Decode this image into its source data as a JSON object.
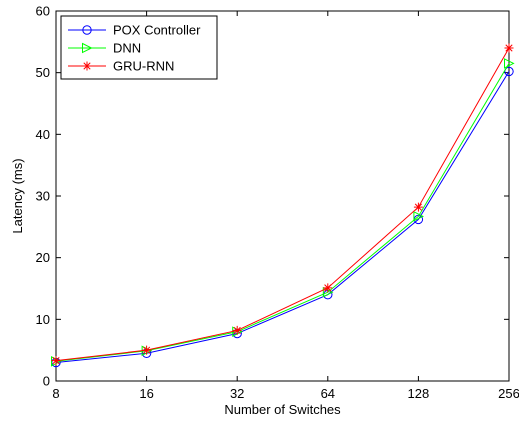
{
  "chart_data": {
    "type": "line",
    "title": "",
    "xlabel": "Number of Switches",
    "ylabel": "Latency (ms)",
    "categories": [
      "8",
      "16",
      "32",
      "64",
      "128",
      "256"
    ],
    "x_scale": "log2",
    "ylim": [
      0,
      60
    ],
    "yticks": [
      "0",
      "10",
      "20",
      "30",
      "40",
      "50",
      "60"
    ],
    "grid": false,
    "legend_position": "top-left",
    "series": [
      {
        "name": "POX Controller",
        "color": "#0000ff",
        "marker": "circle",
        "values": [
          3.0,
          4.5,
          7.7,
          14.0,
          26.2,
          50.2
        ]
      },
      {
        "name": "DNN",
        "color": "#00ff00",
        "marker": "triangle-right",
        "values": [
          3.2,
          4.9,
          8.0,
          14.4,
          26.7,
          51.5
        ]
      },
      {
        "name": "GRU-RNN",
        "color": "#ff0000",
        "marker": "asterisk",
        "values": [
          3.3,
          5.0,
          8.2,
          15.1,
          28.2,
          54.0
        ]
      }
    ]
  }
}
